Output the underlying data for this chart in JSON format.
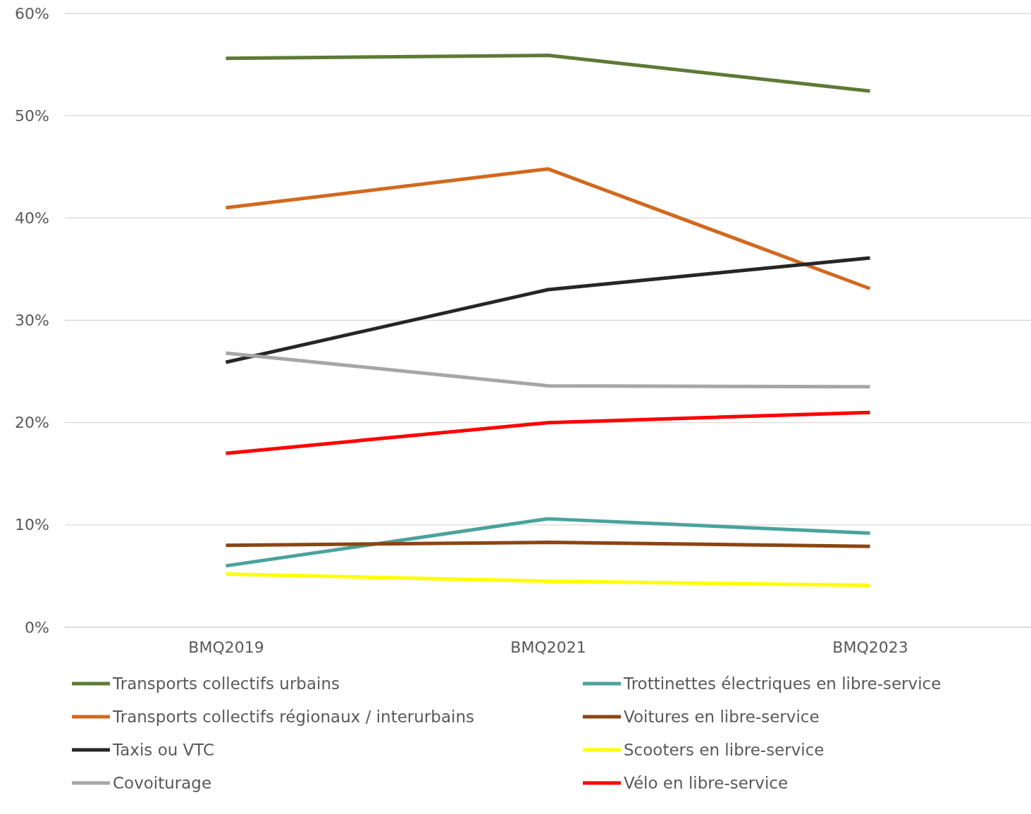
{
  "chart_data": {
    "type": "line",
    "categories": [
      "BMQ2019",
      "BMQ2021",
      "BMQ2023"
    ],
    "ylim": [
      0,
      60
    ],
    "yticks": [
      {
        "value": 0,
        "label": "0%"
      },
      {
        "value": 10,
        "label": "10%"
      },
      {
        "value": 20,
        "label": "20%"
      },
      {
        "value": 30,
        "label": "30%"
      },
      {
        "value": 40,
        "label": "40%"
      },
      {
        "value": 50,
        "label": "50%"
      },
      {
        "value": 60,
        "label": "60%"
      }
    ],
    "grid": "y",
    "legend": "bottom",
    "marker": "none",
    "line_style": "solid",
    "series": [
      {
        "name": "Transports collectifs urbains",
        "color": "#5e7a36",
        "values": [
          55.6,
          55.9,
          52.4
        ]
      },
      {
        "name": "Transports collectifs régionaux / interurbains",
        "color": "#d2691e",
        "values": [
          41.0,
          44.8,
          33.1
        ]
      },
      {
        "name": "Taxis ou VTC",
        "color": "#262626",
        "values": [
          25.9,
          33.0,
          36.1
        ]
      },
      {
        "name": "Covoiturage",
        "color": "#a6a6a6",
        "values": [
          26.8,
          23.6,
          23.5
        ]
      },
      {
        "name": "Trottinettes électriques en libre-service",
        "color": "#4aa39c",
        "values": [
          6.0,
          10.6,
          9.2
        ]
      },
      {
        "name": "Voitures en libre-service",
        "color": "#8b4513",
        "values": [
          8.0,
          8.3,
          7.9
        ]
      },
      {
        "name": "Scooters en libre-service",
        "color": "#ffff00",
        "values": [
          5.2,
          4.5,
          4.1
        ]
      },
      {
        "name": "Vélo en libre-service",
        "color": "#ff0000",
        "values": [
          17.0,
          20.0,
          21.0
        ]
      }
    ]
  }
}
